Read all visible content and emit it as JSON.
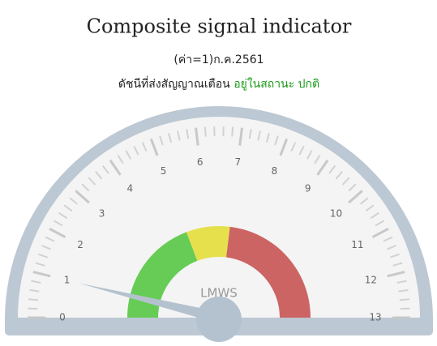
{
  "chart_data": {
    "type": "gauge",
    "title": "Composite signal indicator",
    "subtitle": "(ค่า=1)ก.ค.2561",
    "annotation": "ดัชนีที่ส่งสัญญาณเตือน",
    "status": "อยู่ในสถานะ ปกติ",
    "status_color": "#1a9a1a",
    "center_label": "LMWS",
    "value": 1,
    "needle_color": "#b4c2cf",
    "ylim": [
      0,
      13
    ],
    "yticks": [
      0,
      1,
      2,
      3,
      4,
      5,
      6,
      7,
      8,
      9,
      10,
      11,
      12,
      13
    ],
    "minor_ticks_per_interval": 4,
    "bands": [
      {
        "from": 0,
        "to": 5,
        "color": "#66cc55"
      },
      {
        "from": 5,
        "to": 7,
        "color": "#e6e04c"
      },
      {
        "from": 7,
        "to": 13,
        "color": "#cc6464"
      }
    ]
  }
}
